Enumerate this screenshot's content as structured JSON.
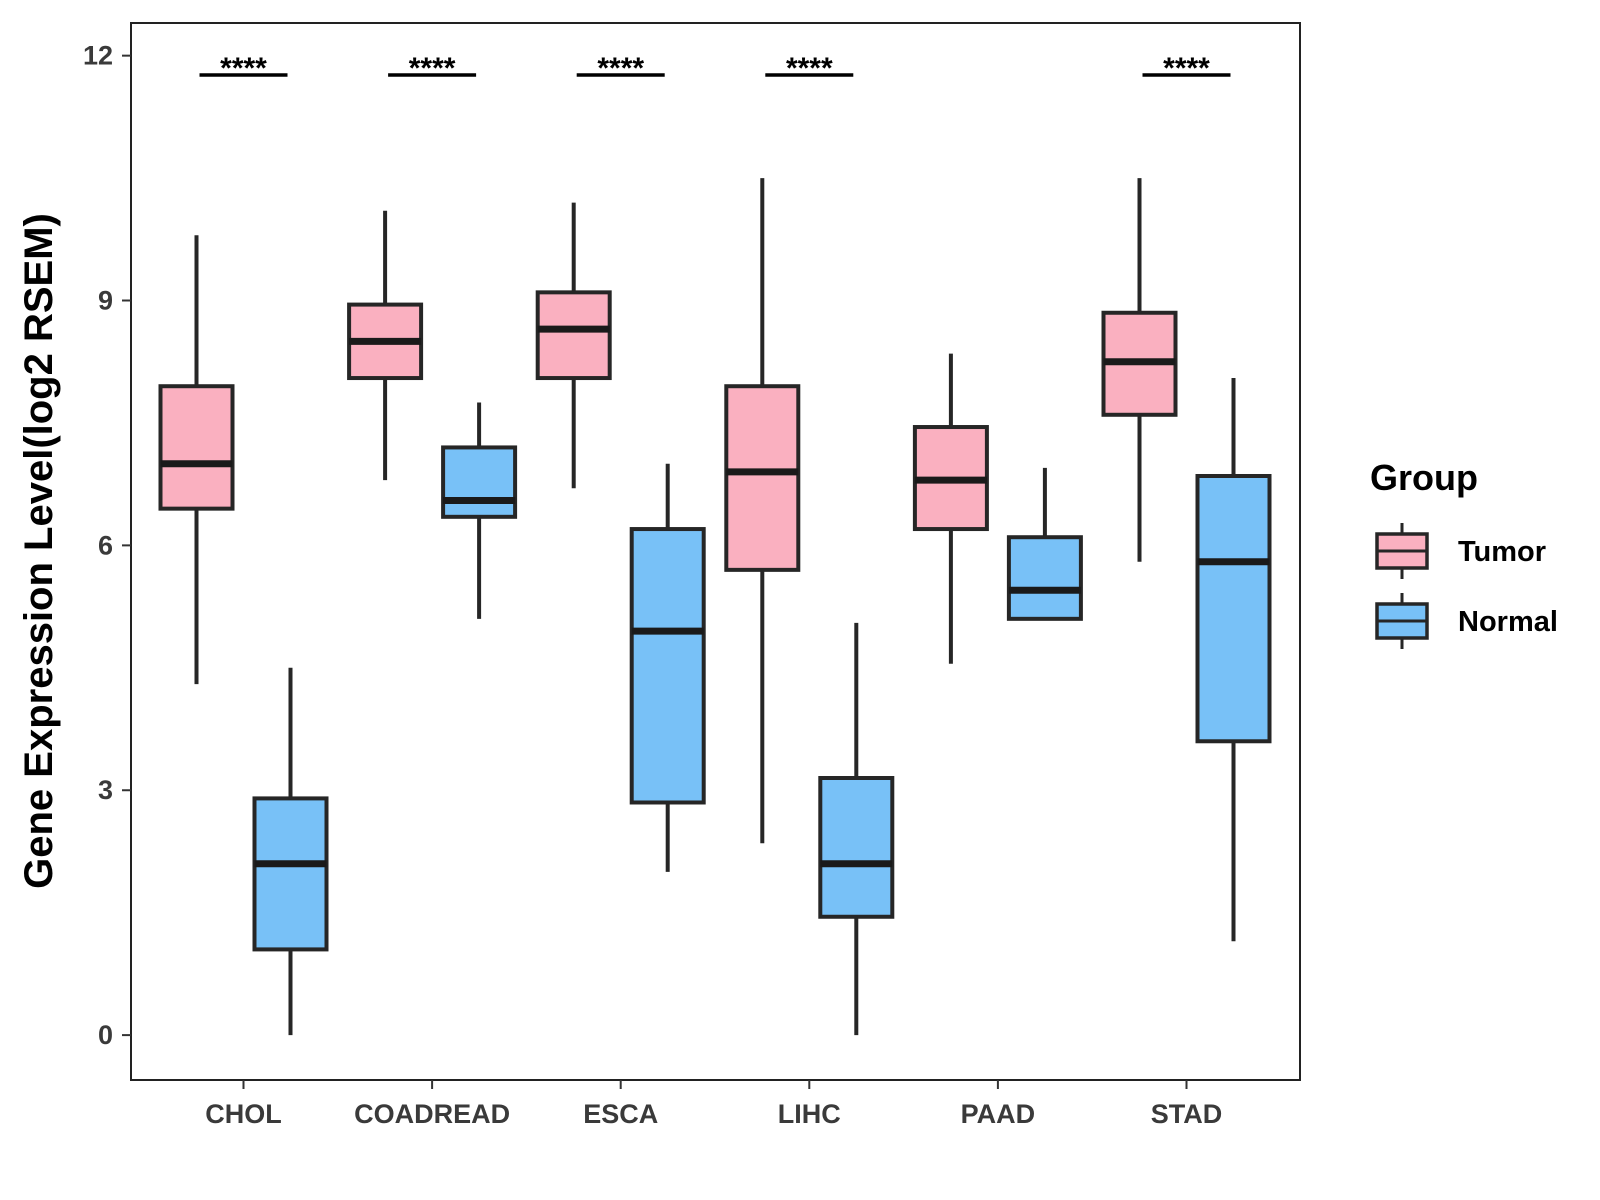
{
  "chart_data": {
    "type": "boxplot",
    "title": "",
    "xlabel": "",
    "ylabel": "Gene Expression Level(log2 RSEM)",
    "ylim": [
      -0.55,
      12.4
    ],
    "yticks": [
      0,
      3,
      6,
      9,
      12
    ],
    "grid": false,
    "categories": [
      "CHOL",
      "COADREAD",
      "ESCA",
      "LIHC",
      "PAAD",
      "STAD"
    ],
    "legend": {
      "title": "Group",
      "position": "right",
      "entries": [
        {
          "name": "Tumor",
          "color": "#FAB0C0"
        },
        {
          "name": "Normal",
          "color": "#78C1F7"
        }
      ]
    },
    "significance": [
      {
        "category": "CHOL",
        "label": "****"
      },
      {
        "category": "COADREAD",
        "label": "****"
      },
      {
        "category": "ESCA",
        "label": "****"
      },
      {
        "category": "LIHC",
        "label": "****"
      },
      {
        "category": "STAD",
        "label": "****"
      }
    ],
    "series": [
      {
        "name": "Tumor",
        "color": "#FAB0C0",
        "boxes": [
          {
            "min": 4.3,
            "q1": 6.45,
            "median": 7.0,
            "q3": 7.95,
            "max": 9.8
          },
          {
            "min": 6.8,
            "q1": 8.05,
            "median": 8.5,
            "q3": 8.95,
            "max": 10.1
          },
          {
            "min": 6.7,
            "q1": 8.05,
            "median": 8.65,
            "q3": 9.1,
            "max": 10.2
          },
          {
            "min": 2.35,
            "q1": 5.7,
            "median": 6.9,
            "q3": 7.95,
            "max": 10.5
          },
          {
            "min": 4.55,
            "q1": 6.2,
            "median": 6.8,
            "q3": 7.45,
            "max": 8.35
          },
          {
            "min": 5.8,
            "q1": 7.6,
            "median": 8.25,
            "q3": 8.85,
            "max": 10.5
          }
        ]
      },
      {
        "name": "Normal",
        "color": "#78C1F7",
        "boxes": [
          {
            "min": 0.0,
            "q1": 1.05,
            "median": 2.1,
            "q3": 2.9,
            "max": 4.5
          },
          {
            "min": 5.1,
            "q1": 6.35,
            "median": 6.55,
            "q3": 7.2,
            "max": 7.75
          },
          {
            "min": 2.0,
            "q1": 2.85,
            "median": 4.95,
            "q3": 6.2,
            "max": 7.0
          },
          {
            "min": 0.0,
            "q1": 1.45,
            "median": 2.1,
            "q3": 3.15,
            "max": 5.05
          },
          {
            "min": 5.1,
            "q1": 5.1,
            "median": 5.45,
            "q3": 6.1,
            "max": 6.95
          },
          {
            "min": 1.15,
            "q1": 3.6,
            "median": 5.8,
            "q3": 6.85,
            "max": 8.05
          }
        ]
      }
    ]
  }
}
